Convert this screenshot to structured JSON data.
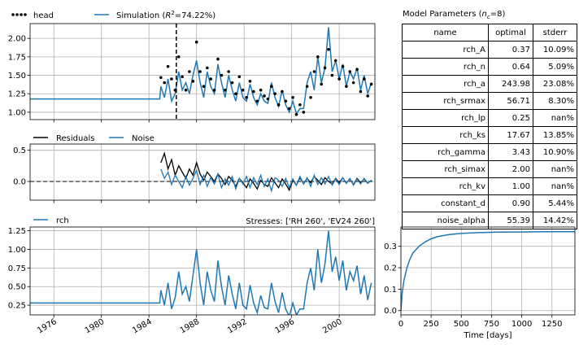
{
  "chart_data": [
    {
      "type": "line",
      "panel": "head-vs-simulation",
      "series": [
        {
          "name": "head",
          "style": "dots",
          "color": "#000000",
          "x": [
            1985.0,
            1985.3,
            1985.6,
            1985.9,
            1986.2,
            1986.5,
            1986.8,
            1987.1,
            1987.4,
            1987.7,
            1988.0,
            1988.3,
            1988.6,
            1988.9,
            1989.2,
            1989.5,
            1989.8,
            1990.1,
            1990.4,
            1990.7,
            1991.0,
            1991.3,
            1991.6,
            1991.9,
            1992.2,
            1992.5,
            1992.8,
            1993.1,
            1993.4,
            1993.7,
            1994.0,
            1994.3,
            1994.6,
            1994.9,
            1995.2,
            1995.5,
            1995.8,
            1996.1,
            1996.4,
            1996.7,
            1997.0,
            1997.3,
            1997.6,
            1997.9,
            1998.2,
            1998.5,
            1998.8,
            1999.1,
            1999.4,
            1999.7,
            2000.0,
            2000.3,
            2000.6,
            2000.9,
            2001.2,
            2001.5,
            2001.8,
            2002.1,
            2002.4,
            2002.7
          ],
          "y": [
            1.47,
            1.4,
            1.62,
            1.45,
            1.3,
            1.75,
            1.48,
            1.3,
            1.55,
            1.42,
            1.95,
            1.55,
            1.35,
            1.6,
            1.45,
            1.3,
            1.72,
            1.5,
            1.3,
            1.55,
            1.4,
            1.25,
            1.48,
            1.3,
            1.2,
            1.42,
            1.28,
            1.15,
            1.3,
            1.22,
            1.18,
            1.35,
            1.25,
            1.1,
            1.28,
            1.15,
            1.05,
            1.2,
            0.97,
            1.1,
            1.0,
            1.35,
            1.2,
            1.55,
            1.75,
            1.38,
            1.6,
            1.85,
            1.5,
            1.7,
            1.45,
            1.62,
            1.35,
            1.55,
            1.4,
            1.58,
            1.28,
            1.45,
            1.22,
            1.38
          ]
        },
        {
          "name": "Simulation ($R^2$=74.22%)",
          "style": "line",
          "color": "#1f77b4",
          "x": [
            1974.0,
            1984.9,
            1985.0,
            1985.3,
            1985.6,
            1985.9,
            1986.2,
            1986.5,
            1986.8,
            1987.1,
            1987.4,
            1987.7,
            1988.0,
            1988.3,
            1988.6,
            1988.9,
            1989.2,
            1989.5,
            1989.8,
            1990.1,
            1990.4,
            1990.7,
            1991.0,
            1991.3,
            1991.6,
            1991.9,
            1992.2,
            1992.5,
            1992.8,
            1993.1,
            1993.4,
            1993.7,
            1994.0,
            1994.3,
            1994.6,
            1994.9,
            1995.2,
            1995.5,
            1995.8,
            1996.1,
            1996.4,
            1996.7,
            1997.0,
            1997.3,
            1997.6,
            1997.9,
            1998.2,
            1998.5,
            1998.8,
            1999.1,
            1999.4,
            1999.7,
            2000.0,
            2000.3,
            2000.6,
            2000.9,
            2001.2,
            2001.5,
            2001.8,
            2002.1,
            2002.4,
            2002.7
          ],
          "y": [
            1.18,
            1.18,
            1.35,
            1.2,
            1.45,
            1.15,
            1.25,
            1.55,
            1.3,
            1.4,
            1.25,
            1.5,
            1.7,
            1.4,
            1.2,
            1.55,
            1.35,
            1.25,
            1.65,
            1.4,
            1.2,
            1.5,
            1.3,
            1.15,
            1.4,
            1.2,
            1.15,
            1.38,
            1.2,
            1.1,
            1.25,
            1.15,
            1.12,
            1.4,
            1.2,
            1.08,
            1.3,
            1.1,
            1.0,
            1.15,
            0.98,
            1.05,
            1.05,
            1.4,
            1.55,
            1.3,
            1.75,
            1.4,
            1.6,
            2.15,
            1.55,
            1.7,
            1.45,
            1.65,
            1.35,
            1.55,
            1.45,
            1.6,
            1.3,
            1.5,
            1.25,
            1.4
          ]
        }
      ],
      "vline_x": 1986.3,
      "xlim": [
        1974.0,
        2003.0
      ],
      "ylim": [
        0.9,
        2.2
      ],
      "yticks": [
        "1.00",
        "1.25",
        "1.50",
        "1.75",
        "2.00"
      ],
      "grid": true,
      "legend": "top-left, outside"
    },
    {
      "type": "line",
      "panel": "residuals-noise",
      "series": [
        {
          "name": "Residuals",
          "color": "#000000",
          "x": [
            1985.0,
            1985.3,
            1985.6,
            1985.9,
            1986.2,
            1986.5,
            1986.8,
            1987.1,
            1987.4,
            1987.7,
            1988.0,
            1988.3,
            1988.6,
            1988.9,
            1989.2,
            1989.5,
            1989.8,
            1990.1,
            1990.4,
            1990.7,
            1991.0,
            1991.3,
            1991.6,
            1991.9,
            1992.2,
            1992.5,
            1992.8,
            1993.1,
            1993.4,
            1993.7,
            1994.0,
            1994.3,
            1994.6,
            1994.9,
            1995.2,
            1995.5,
            1995.8,
            1996.1,
            1996.4,
            1996.7,
            1997.0,
            1997.3,
            1997.6,
            1997.9,
            1998.2,
            1998.5,
            1998.8,
            1999.1,
            1999.4,
            1999.7,
            2000.0,
            2000.3,
            2000.6,
            2000.9,
            2001.2,
            2001.5,
            2001.8,
            2002.1,
            2002.4,
            2002.7
          ],
          "y": [
            0.3,
            0.45,
            0.2,
            0.35,
            0.1,
            0.25,
            0.15,
            0.05,
            0.2,
            0.1,
            0.3,
            0.12,
            0.02,
            0.15,
            0.08,
            0.0,
            0.12,
            0.05,
            -0.05,
            0.08,
            0.02,
            -0.08,
            0.05,
            -0.02,
            -0.1,
            0.04,
            -0.03,
            -0.12,
            0.02,
            -0.05,
            -0.08,
            0.06,
            -0.02,
            -0.1,
            0.04,
            -0.04,
            -0.14,
            0.02,
            -0.06,
            0.06,
            -0.04,
            0.05,
            -0.02,
            0.08,
            0.02,
            -0.05,
            0.06,
            0.0,
            -0.04,
            0.05,
            -0.02,
            0.06,
            -0.03,
            0.04,
            -0.05,
            0.05,
            -0.02,
            0.04,
            -0.03,
            0.02
          ]
        },
        {
          "name": "Noise",
          "color": "#1f77b4",
          "x": [
            1985.0,
            1985.3,
            1985.6,
            1985.9,
            1986.2,
            1986.5,
            1986.8,
            1987.1,
            1987.4,
            1987.7,
            1988.0,
            1988.3,
            1988.6,
            1988.9,
            1989.2,
            1989.5,
            1989.8,
            1990.1,
            1990.4,
            1990.7,
            1991.0,
            1991.3,
            1991.6,
            1991.9,
            1992.2,
            1992.5,
            1992.8,
            1993.1,
            1993.4,
            1993.7,
            1994.0,
            1994.3,
            1994.6,
            1994.9,
            1995.2,
            1995.5,
            1995.8,
            1996.1,
            1996.4,
            1996.7,
            1997.0,
            1997.3,
            1997.6,
            1997.9,
            1998.2,
            1998.5,
            1998.8,
            1999.1,
            1999.4,
            1999.7,
            2000.0,
            2000.3,
            2000.6,
            2000.9,
            2001.2,
            2001.5,
            2001.8,
            2002.1,
            2002.4,
            2002.7
          ],
          "y": [
            0.2,
            0.05,
            0.15,
            -0.05,
            0.1,
            0.0,
            -0.1,
            0.08,
            -0.06,
            0.05,
            0.18,
            -0.05,
            0.1,
            -0.08,
            0.06,
            -0.04,
            0.12,
            -0.1,
            0.04,
            -0.06,
            0.08,
            -0.12,
            0.05,
            -0.04,
            0.08,
            -0.1,
            0.06,
            -0.05,
            0.1,
            -0.08,
            0.04,
            -0.15,
            0.06,
            0.02,
            -0.08,
            0.05,
            -0.1,
            0.04,
            -0.06,
            0.08,
            -0.04,
            0.06,
            -0.08,
            0.1,
            -0.05,
            0.06,
            -0.04,
            0.08,
            -0.06,
            0.04,
            -0.05,
            0.06,
            -0.03,
            0.05,
            -0.06,
            0.04,
            -0.04,
            0.05,
            -0.03,
            0.02
          ]
        }
      ],
      "zero_line": true,
      "xlim": [
        1974.0,
        2003.0
      ],
      "ylim": [
        -0.3,
        0.6
      ],
      "yticks": [
        "0.0",
        "0.5"
      ],
      "grid": true,
      "legend": "top-left, outside"
    },
    {
      "type": "line",
      "panel": "stress-contribution",
      "annotation": "Stresses: ['RH 260', 'EV24 260']",
      "series": [
        {
          "name": "rch",
          "color": "#1f77b4",
          "x": [
            1974.0,
            1984.9,
            1985.0,
            1985.3,
            1985.6,
            1985.9,
            1986.2,
            1986.5,
            1986.8,
            1987.1,
            1987.4,
            1987.7,
            1988.0,
            1988.3,
            1988.6,
            1988.9,
            1989.2,
            1989.5,
            1989.8,
            1990.1,
            1990.4,
            1990.7,
            1991.0,
            1991.3,
            1991.6,
            1991.9,
            1992.2,
            1992.5,
            1992.8,
            1993.1,
            1993.4,
            1993.7,
            1994.0,
            1994.3,
            1994.6,
            1994.9,
            1995.2,
            1995.5,
            1995.8,
            1996.1,
            1996.4,
            1996.7,
            1997.0,
            1997.3,
            1997.6,
            1997.9,
            1998.2,
            1998.5,
            1998.8,
            1999.1,
            1999.4,
            1999.7,
            2000.0,
            2000.3,
            2000.6,
            2000.9,
            2001.2,
            2001.5,
            2001.8,
            2002.1,
            2002.4,
            2002.7
          ],
          "y": [
            0.28,
            0.28,
            0.45,
            0.25,
            0.55,
            0.2,
            0.35,
            0.7,
            0.4,
            0.5,
            0.3,
            0.65,
            1.0,
            0.55,
            0.25,
            0.7,
            0.45,
            0.3,
            0.85,
            0.5,
            0.25,
            0.65,
            0.4,
            0.2,
            0.55,
            0.25,
            0.2,
            0.52,
            0.28,
            0.15,
            0.38,
            0.22,
            0.2,
            0.55,
            0.3,
            0.15,
            0.42,
            0.2,
            0.1,
            0.28,
            0.12,
            0.2,
            0.2,
            0.55,
            0.75,
            0.45,
            1.0,
            0.55,
            0.8,
            1.25,
            0.7,
            0.9,
            0.58,
            0.85,
            0.45,
            0.7,
            0.58,
            0.78,
            0.4,
            0.65,
            0.32,
            0.55
          ]
        }
      ],
      "xlim": [
        1974.0,
        2003.0
      ],
      "ylim": [
        0.12,
        1.3
      ],
      "xticks": [
        "1976",
        "1980",
        "1984",
        "1988",
        "1992",
        "1996",
        "2000"
      ],
      "yticks": [
        "0.25",
        "0.50",
        "0.75",
        "1.00",
        "1.25"
      ],
      "grid": true,
      "legend": "top-left, outside"
    },
    {
      "type": "line",
      "panel": "step-response",
      "series": [
        {
          "name": "step response",
          "color": "#1f77b4",
          "x": [
            0,
            10,
            25,
            50,
            75,
            100,
            150,
            200,
            250,
            300,
            400,
            500,
            600,
            700,
            800,
            1000,
            1200,
            1440
          ],
          "y": [
            0.0,
            0.08,
            0.14,
            0.2,
            0.24,
            0.27,
            0.3,
            0.32,
            0.335,
            0.345,
            0.355,
            0.36,
            0.363,
            0.365,
            0.366,
            0.367,
            0.368,
            0.368
          ]
        }
      ],
      "xlim": [
        0,
        1440
      ],
      "ylim": [
        -0.02,
        0.39
      ],
      "xticks": [
        0,
        250,
        500,
        750,
        1000,
        1250
      ],
      "yticks": [
        "0.0",
        "0.1",
        "0.2",
        "0.3"
      ],
      "xlabel": "Time [days]",
      "grid": true
    }
  ],
  "legend": {
    "head": "head",
    "simulation": "Simulation (R²=74.22%)",
    "residuals": "Residuals",
    "noise": "Noise",
    "rch": "rch",
    "stresses": "Stresses: ['RH 260', 'EV24 260']"
  },
  "colors": {
    "blue": "#1f77b4",
    "black": "#000000",
    "grid": "#b0b0b0"
  },
  "table": {
    "title": "Model Parameters (n_c=8)",
    "headers": [
      "name",
      "optimal",
      "stderr"
    ],
    "rows": [
      [
        "rch_A",
        "0.37",
        "10.09%"
      ],
      [
        "rch_n",
        "0.64",
        "5.09%"
      ],
      [
        "rch_a",
        "243.98",
        "23.08%"
      ],
      [
        "rch_srmax",
        "56.71",
        "8.30%"
      ],
      [
        "rch_lp",
        "0.25",
        "nan%"
      ],
      [
        "rch_ks",
        "17.67",
        "13.85%"
      ],
      [
        "rch_gamma",
        "3.43",
        "10.90%"
      ],
      [
        "rch_simax",
        "2.00",
        "nan%"
      ],
      [
        "rch_kv",
        "1.00",
        "nan%"
      ],
      [
        "constant_d",
        "0.90",
        "5.44%"
      ],
      [
        "noise_alpha",
        "55.39",
        "14.42%"
      ]
    ]
  }
}
